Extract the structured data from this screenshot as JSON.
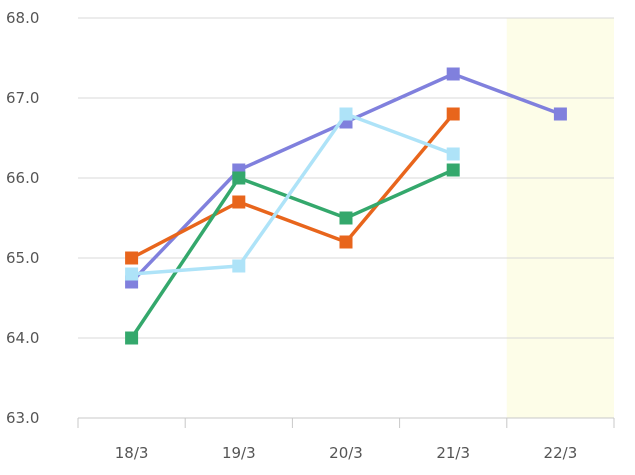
{
  "chart_data": {
    "type": "line",
    "title": "",
    "xlabel": "",
    "ylabel": "",
    "categories": [
      "18/3",
      "19/3",
      "20/3",
      "21/3",
      "22/3"
    ],
    "ylim": [
      63.0,
      68.0
    ],
    "yticks": [
      "63.0",
      "64.0",
      "65.0",
      "66.0",
      "67.0",
      "68.0"
    ],
    "grid": true,
    "highlight_category": "22/3",
    "highlight_color": "#fdfde8",
    "series": [
      {
        "color": "#8080dd",
        "values": [
          64.7,
          66.1,
          66.7,
          67.3,
          66.8
        ]
      },
      {
        "color": "#e8651c",
        "values": [
          65.0,
          65.7,
          65.2,
          66.8,
          null
        ]
      },
      {
        "color": "#34a86c",
        "values": [
          64.0,
          66.0,
          65.5,
          66.1,
          null
        ]
      },
      {
        "color": "#aee3f8",
        "values": [
          64.8,
          64.9,
          66.8,
          66.3,
          null
        ]
      }
    ]
  }
}
